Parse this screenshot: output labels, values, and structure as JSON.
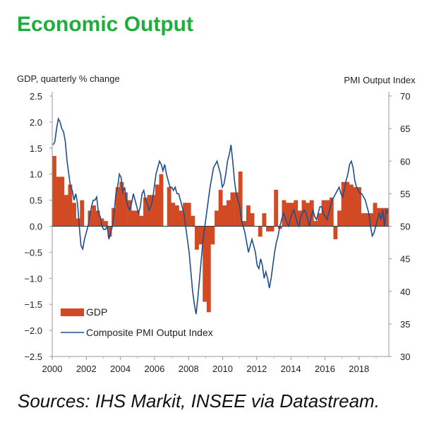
{
  "page": {
    "title": "Economic Output",
    "source": "Sources: IHS Markit, INSEE via Datastream."
  },
  "chart_data": {
    "type": "bar",
    "x_ticks": [
      "2000",
      "2002",
      "2004",
      "2006",
      "2008",
      "2010",
      "2012",
      "2014",
      "2016",
      "2018"
    ],
    "x_range": [
      2000,
      2019.75
    ],
    "y_left": {
      "label": "GDP, quarterly % change",
      "ylim": [
        -2.5,
        2.5
      ],
      "ticks": [
        "2.5",
        "2.0",
        "1.5",
        "1.0",
        "0.5",
        "0.0",
        "−0.5",
        "−1.0",
        "−1.5",
        "−2.0",
        "−2.5"
      ]
    },
    "y_right": {
      "label": "PMI Output  Index",
      "ylim": [
        30,
        70
      ],
      "ticks": [
        "70",
        "65",
        "60",
        "55",
        "50",
        "45",
        "40",
        "35",
        "30"
      ]
    },
    "legend": [
      "GDP",
      "Composite PMI Output Index"
    ],
    "series": [
      {
        "name": "GDP",
        "type": "bar",
        "color": "#d14a24",
        "values": [
          1.35,
          0.95,
          0.95,
          0.6,
          0.8,
          0.45,
          0.15,
          0.5,
          0.0,
          0.3,
          0.4,
          0.3,
          0.15,
          0.1,
          -0.2,
          0.35,
          0.75,
          0.85,
          0.65,
          0.5,
          0.3,
          0.3,
          0.2,
          0.55,
          0.6,
          0.6,
          0.8,
          1.0,
          0.0,
          0.75,
          0.45,
          0.4,
          0.3,
          0.45,
          0.45,
          0.2,
          -0.45,
          -0.35,
          -1.45,
          -1.65,
          -0.35,
          0.3,
          0.7,
          0.4,
          0.5,
          0.65,
          0.65,
          1.05,
          0.1,
          0.4,
          0.25,
          0.0,
          -0.2,
          0.25,
          -0.1,
          -0.1,
          0.7,
          -0.05,
          0.5,
          0.45,
          0.45,
          0.5,
          0.3,
          0.5,
          0.45,
          0.5,
          0.1,
          0.25,
          0.5,
          0.5,
          0.55,
          -0.25,
          0.3,
          0.85,
          0.85,
          0.8,
          0.75,
          0.75,
          0.25,
          0.25,
          0.25,
          0.45,
          0.35,
          0.35,
          0.35
        ]
      },
      {
        "name": "Composite PMI Output Index",
        "type": "line",
        "color": "#1f4e8c",
        "values": [
          62.5,
          63,
          65,
          66.5,
          66,
          65,
          64.5,
          63,
          60,
          58,
          56,
          55.5,
          54,
          55,
          53.5,
          50,
          47,
          46.5,
          48,
          49,
          50,
          51.5,
          53,
          54,
          54,
          54.5,
          52,
          51.5,
          50,
          49.5,
          49.5,
          50,
          48,
          49,
          50,
          52,
          55,
          56,
          58,
          57.5,
          55,
          56,
          54,
          53,
          52.5,
          53.5,
          55,
          54,
          53,
          52,
          53,
          55,
          55.5,
          54,
          53.5,
          52.5,
          53,
          54,
          56,
          58,
          59,
          60,
          59.5,
          58.5,
          59.5,
          58,
          57,
          56,
          56,
          55.5,
          56,
          55,
          55,
          54,
          53,
          52,
          50,
          48,
          46,
          43,
          40,
          38,
          36.5,
          39,
          42,
          45,
          48,
          50,
          52,
          54,
          56,
          57.5,
          59,
          59.5,
          60,
          59,
          58,
          56,
          56.5,
          58,
          60,
          61,
          62.5,
          60,
          57,
          55,
          54,
          53,
          51,
          50,
          49,
          47.5,
          46,
          47,
          48,
          47,
          46,
          44,
          43.5,
          45,
          44,
          42,
          43,
          42,
          40.5,
          42,
          44,
          46,
          47.5,
          48.5,
          50,
          51,
          52,
          51.5,
          50.5,
          50,
          51,
          52,
          52.5,
          51.5,
          50.5,
          50,
          51.5,
          52,
          52.5,
          52,
          51,
          50,
          51.5,
          52.5,
          51.5,
          51,
          52,
          53,
          53,
          52,
          51.5,
          51,
          52,
          53,
          54,
          54.5,
          55,
          55.5,
          56,
          55,
          54.5,
          55.5,
          57,
          58,
          59.5,
          60,
          59,
          57,
          56,
          55.5,
          55,
          55,
          54.5,
          54,
          53,
          52,
          50,
          48.5,
          49,
          50,
          51,
          52,
          51,
          52.5,
          50,
          52.5,
          52
        ]
      }
    ]
  }
}
